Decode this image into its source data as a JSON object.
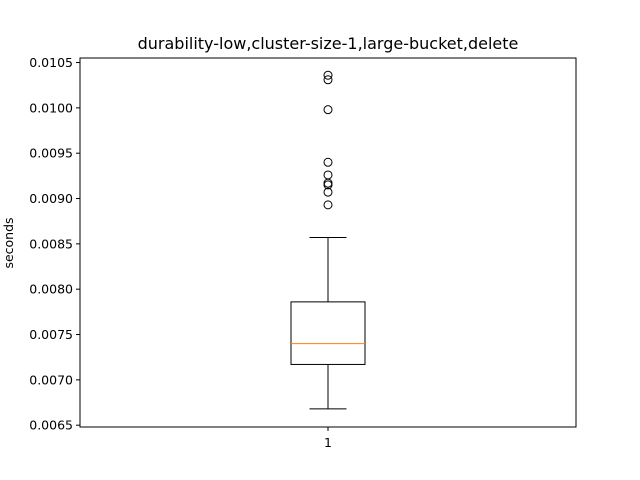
{
  "chart_data": {
    "type": "box",
    "title": "durability-low,cluster-size-1,large-bucket,delete",
    "xlabel": "",
    "ylabel": "seconds",
    "categories": [
      "1"
    ],
    "ylim": [
      0.00648,
      0.01055
    ],
    "yticks": [
      0.0065,
      0.007,
      0.0075,
      0.008,
      0.0085,
      0.009,
      0.0095,
      0.01,
      0.0105
    ],
    "ytick_labels": [
      "0.0065",
      "0.0070",
      "0.0075",
      "0.0080",
      "0.0085",
      "0.0090",
      "0.0095",
      "0.0100",
      "0.0105"
    ],
    "grid": false,
    "boxes": [
      {
        "category": "1",
        "whisker_low": 0.00668,
        "q1": 0.00717,
        "median": 0.0074,
        "q3": 0.00786,
        "whisker_high": 0.00857,
        "outliers": [
          0.00893,
          0.00907,
          0.00915,
          0.00917,
          0.00926,
          0.0094,
          0.00998,
          0.01031,
          0.01036
        ]
      }
    ],
    "colors": {
      "box": "#000000",
      "median": "#ff7f0e",
      "outlier": "#000000"
    }
  }
}
